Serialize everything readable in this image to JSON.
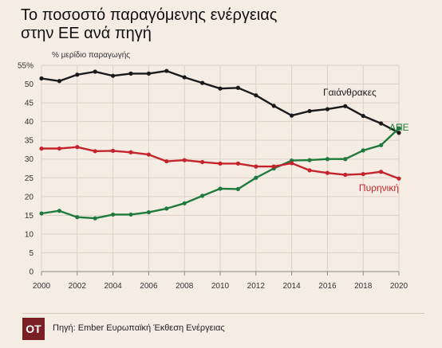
{
  "title_lines": [
    "Το ποσοστό παραγόμενης ενέργειας",
    "στην ΕΕ ανά πηγή"
  ],
  "footer": {
    "logo": "ΟΤ",
    "source": "Πηγή: Ember Ευρωπαϊκή Έκθεση Ενέργειας"
  },
  "chart_data": {
    "type": "line",
    "title": "Το ποσοστό παραγόμενης ενέργειας στην ΕΕ ανά πηγή",
    "ylabel": "% μερίδιο παραγωγής",
    "xlabel": "",
    "x": [
      2000,
      2001,
      2002,
      2003,
      2004,
      2005,
      2006,
      2007,
      2008,
      2009,
      2010,
      2011,
      2012,
      2013,
      2014,
      2015,
      2016,
      2017,
      2018,
      2019,
      2020
    ],
    "xticks": [
      "2000",
      "2002",
      "2004",
      "2006",
      "2008",
      "2010",
      "2012",
      "2014",
      "2016",
      "2018",
      "2020"
    ],
    "yticks": [
      "0",
      "5",
      "10",
      "15",
      "20",
      "25",
      "30",
      "35",
      "40",
      "45",
      "50",
      "55%"
    ],
    "ylim": [
      0,
      55
    ],
    "xlim": [
      2000,
      2020
    ],
    "grid": true,
    "series": [
      {
        "name": "Γαιάνθρακες",
        "color": "#1a1a1a",
        "values": [
          51.5,
          50.8,
          52.5,
          53.3,
          52.2,
          52.8,
          52.8,
          53.5,
          51.8,
          50.3,
          48.8,
          49.0,
          47.0,
          44.2,
          41.6,
          42.8,
          43.3,
          44.1,
          41.5,
          39.5,
          37.0
        ]
      },
      {
        "name": "ΑΠΕ",
        "color": "#1f7a3d",
        "values": [
          15.5,
          16.2,
          14.5,
          14.2,
          15.2,
          15.2,
          15.8,
          16.8,
          18.2,
          20.2,
          22.1,
          22.0,
          25.0,
          27.5,
          29.6,
          29.7,
          30.0,
          30.0,
          32.3,
          33.7,
          38.2
        ]
      },
      {
        "name": "Πυρηνική",
        "color": "#c6242c",
        "values": [
          32.8,
          32.8,
          33.2,
          32.1,
          32.2,
          31.8,
          31.2,
          29.4,
          29.7,
          29.2,
          28.8,
          28.8,
          28.0,
          28.0,
          28.9,
          27.0,
          26.3,
          25.8,
          26.0,
          26.6,
          24.8
        ]
      }
    ],
    "labels": [
      {
        "text": "Γαιάνθρακες",
        "series": 0
      },
      {
        "text": "ΑΠΕ",
        "series": 1
      },
      {
        "text": "Πυρηνική",
        "series": 2
      }
    ]
  }
}
